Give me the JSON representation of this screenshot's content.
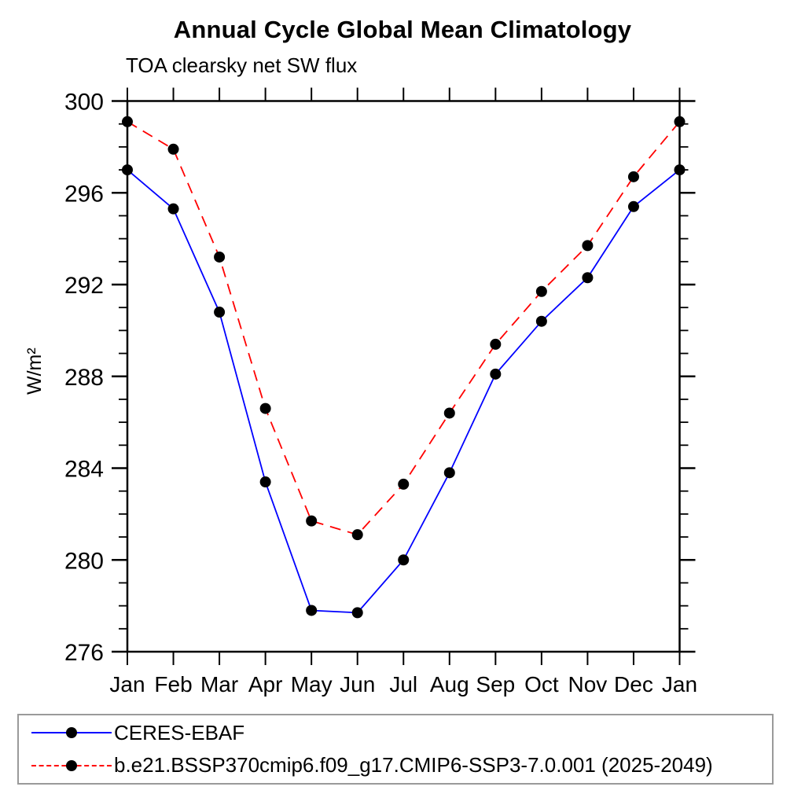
{
  "title": "Annual Cycle Global Mean Climatology",
  "subtitle": "TOA clearsky net SW flux",
  "ylabel": "W/m²",
  "chart_data": {
    "type": "line",
    "title": "Annual Cycle Global Mean Climatology",
    "subtitle": "TOA clearsky net SW flux",
    "xlabel": "",
    "ylabel": "W/m²",
    "categories": [
      "Jan",
      "Feb",
      "Mar",
      "Apr",
      "May",
      "Jun",
      "Jul",
      "Aug",
      "Sep",
      "Oct",
      "Nov",
      "Dec",
      "Jan"
    ],
    "series": [
      {
        "name": "CERES-EBAF",
        "color": "#0000ff",
        "line_style": "solid",
        "marker": "filled-circle",
        "marker_color": "#000000",
        "values": [
          297.0,
          295.3,
          290.8,
          283.4,
          277.8,
          277.7,
          280.0,
          283.8,
          288.1,
          290.4,
          292.3,
          295.4,
          297.0
        ]
      },
      {
        "name": "b.e21.BSSP370cmip6.f09_g17.CMIP6-SSP3-7.0.001 (2025-2049)",
        "color": "#ff0000",
        "line_style": "dashed",
        "marker": "filled-circle",
        "marker_color": "#000000",
        "values": [
          299.1,
          297.9,
          293.2,
          286.6,
          281.7,
          281.1,
          283.3,
          286.4,
          289.4,
          291.7,
          293.7,
          296.7,
          299.1
        ]
      }
    ],
    "ylim": [
      276,
      300
    ],
    "yticks_major": [
      276,
      280,
      284,
      288,
      292,
      296,
      300
    ],
    "ytick_minor_step": 1,
    "grid": false,
    "axis_color": "#000000",
    "legend_position": "bottom-box"
  },
  "legend": {
    "items": [
      {
        "label": "CERES-EBAF"
      },
      {
        "label": "b.e21.BSSP370cmip6.f09_g17.CMIP6-SSP3-7.0.001 (2025-2049)"
      }
    ]
  }
}
